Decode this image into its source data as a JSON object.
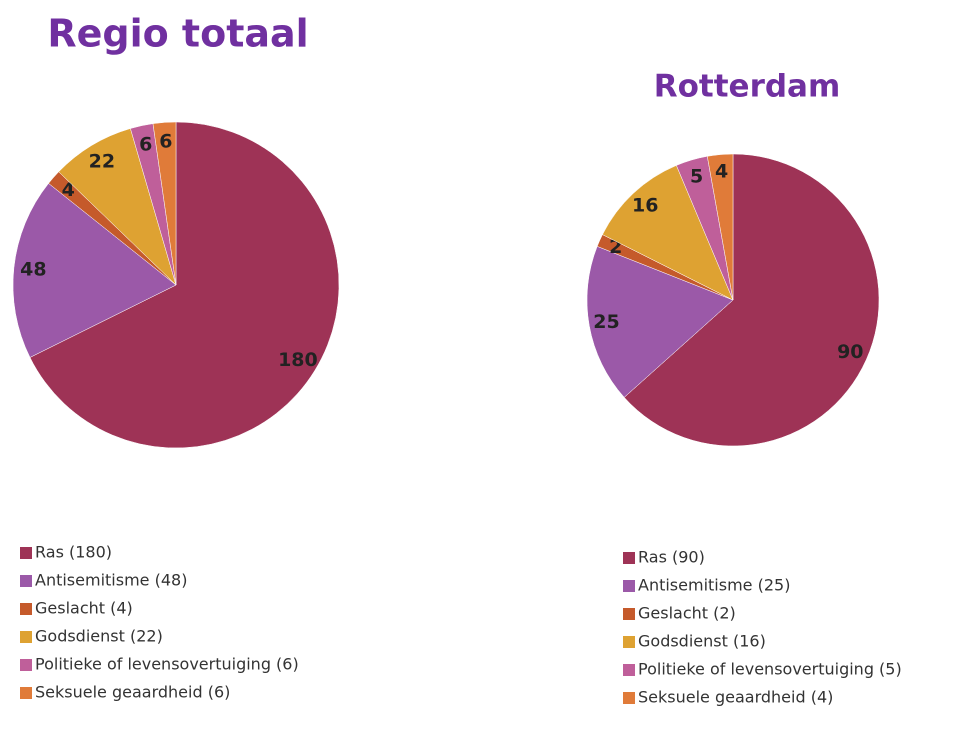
{
  "chart_data": [
    {
      "type": "pie",
      "title": "Regio totaal",
      "categories": [
        "Ras (180)",
        "Antisemitisme (48)",
        "Geslacht (4)",
        "Godsdienst (22)",
        "Politieke of levensovertuiging (6)",
        "Seksuele geaardheid (6)"
      ],
      "values": [
        180,
        48,
        4,
        22,
        6,
        6
      ],
      "colors": [
        "#9e3356",
        "#9b59a8",
        "#c55a2b",
        "#dea232",
        "#bf5f9a",
        "#e07b39"
      ],
      "legend": "bottom"
    },
    {
      "type": "pie",
      "title": "Rotterdam",
      "categories": [
        "Ras (90)",
        "Antisemitisme (25)",
        "Geslacht (2)",
        "Godsdienst (16)",
        "Politieke of levensovertuiging (5)",
        "Seksuele geaardheid (4)"
      ],
      "values": [
        90,
        25,
        2,
        16,
        5,
        4
      ],
      "colors": [
        "#9e3356",
        "#9b59a8",
        "#c55a2b",
        "#dea232",
        "#bf5f9a",
        "#e07b39"
      ],
      "legend": "bottom"
    }
  ]
}
